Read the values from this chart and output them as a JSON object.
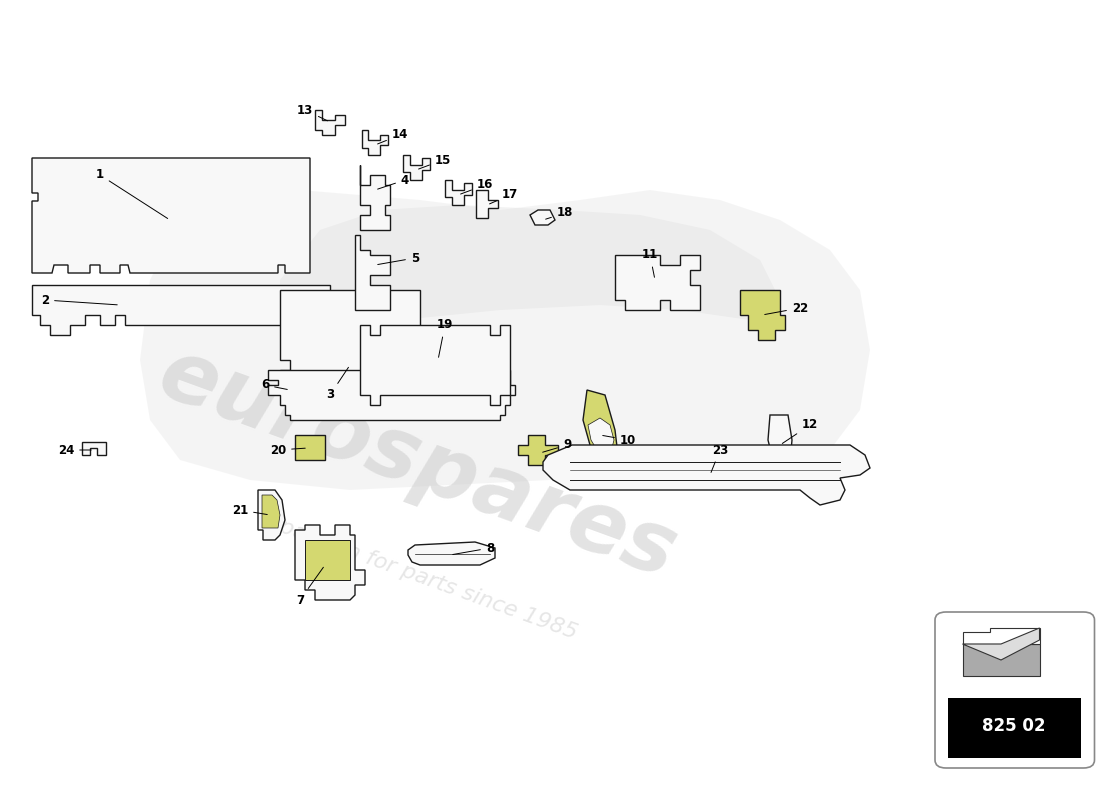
{
  "bg_color": "#ffffff",
  "watermark_text": "eurospares",
  "watermark_subtext": "a passion for parts since 1985",
  "part_number_box": "825 02",
  "edge_color": "#1a1a1a",
  "fill_color": "#f8f8f8",
  "yellow_fill": "#d4d870",
  "lw": 1.0
}
